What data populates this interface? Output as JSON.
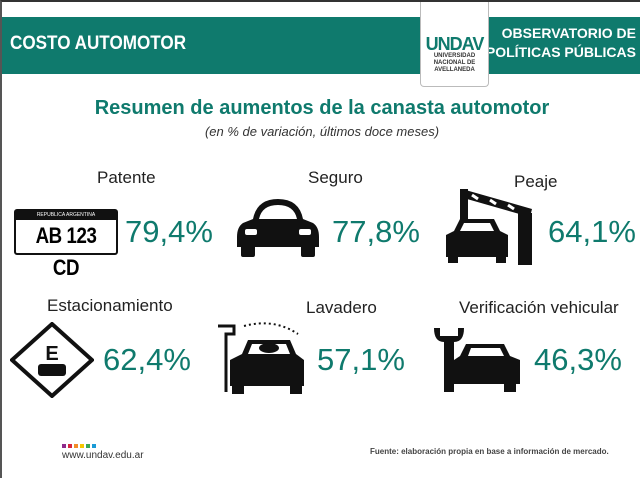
{
  "header": {
    "title": "COSTO AUTOMOTOR",
    "observatory": [
      "OBSERVATORIO DE",
      "POLÍTICAS PÚBLICAS"
    ],
    "logo_mark": "UNDAV",
    "logo_sub": [
      "UNIVERSIDAD",
      "NACIONAL DE",
      "AVELLANEDA"
    ]
  },
  "title": "Resumen de aumentos de la canasta automotor",
  "subtitle": "(en % de variación, últimos doce meses)",
  "items": [
    {
      "label": "Patente",
      "value": "79,4%",
      "icon": "license-plate-icon"
    },
    {
      "label": "Seguro",
      "value": "77,8%",
      "icon": "car-front-icon"
    },
    {
      "label": "Peaje",
      "value": "64,1%",
      "icon": "toll-barrier-icon"
    },
    {
      "label": "Estacionamiento",
      "value": "62,4%",
      "icon": "parking-sign-icon"
    },
    {
      "label": "Lavadero",
      "value": "57,1%",
      "icon": "car-wash-icon"
    },
    {
      "label": "Verificación vehicular",
      "value": "46,3%",
      "icon": "wrench-car-icon"
    }
  ],
  "plate": {
    "country": "REPUBLICA ARGENTINA",
    "number": "AB 123 CD"
  },
  "parking_letter": "E",
  "footer": {
    "url": "www.undav.edu.ar",
    "source": "Fuente: elaboración propia en base a información de mercado.",
    "dot_colors": [
      "#8e2a8b",
      "#d7263d",
      "#f28c28",
      "#f6c700",
      "#3aa655",
      "#1a9ad6"
    ]
  },
  "accent": "#0f7a6d"
}
